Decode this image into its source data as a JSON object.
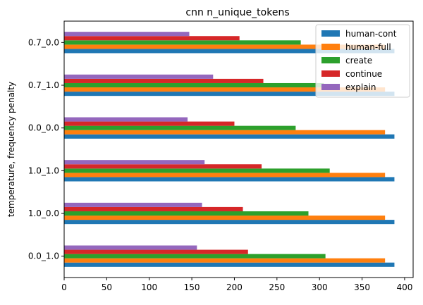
{
  "chart_data": {
    "type": "bar",
    "orientation": "horizontal",
    "title": "cnn n_unique_tokens",
    "xlabel": "",
    "ylabel": "temperature, frequency penalty",
    "xlim": [
      0,
      410
    ],
    "xticks": [
      0,
      50,
      100,
      150,
      200,
      250,
      300,
      350,
      400
    ],
    "categories": [
      "0.0_1.0",
      "1.0_0.0",
      "1.0_1.0",
      "0.0_0.0",
      "0.7_1.0",
      "0.7_0.0"
    ],
    "series": [
      {
        "name": "human-cont",
        "color": "#1f77b4",
        "values": [
          388,
          388,
          388,
          388,
          388,
          388
        ]
      },
      {
        "name": "human-full",
        "color": "#ff7f0e",
        "values": [
          377,
          377,
          377,
          377,
          377,
          377
        ]
      },
      {
        "name": "create",
        "color": "#2ca02c",
        "values": [
          307,
          287,
          312,
          272,
          305,
          278
        ]
      },
      {
        "name": "continue",
        "color": "#d62728",
        "values": [
          216,
          210,
          232,
          200,
          234,
          206
        ]
      },
      {
        "name": "explain",
        "color": "#9467bd",
        "values": [
          156,
          162,
          165,
          145,
          175,
          147
        ]
      }
    ],
    "legend_position": "top-right",
    "grid": false
  }
}
